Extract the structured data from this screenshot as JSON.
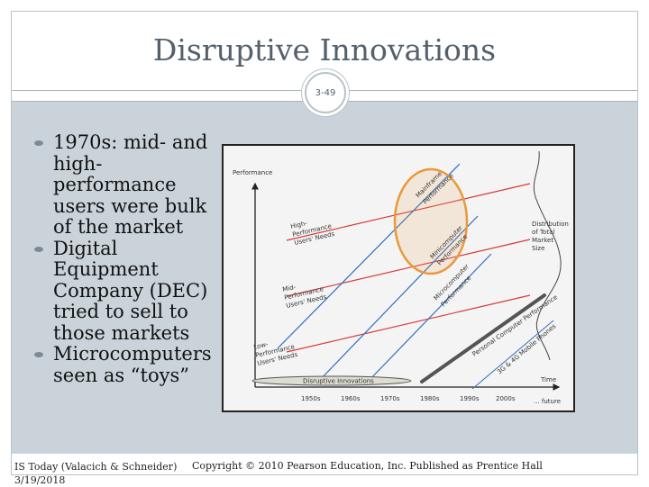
{
  "slide": {
    "title": "Disruptive Innovations",
    "page_number": "3-49"
  },
  "bullets": [
    "1970s: mid- and high-performance users were bulk of the market",
    "Digital Equipment Company (DEC) tried to sell to those markets",
    "Microcomputers seen as “toys”"
  ],
  "figure": {
    "y_axis_label": "Performance",
    "x_axis_label": "Time",
    "distribution_label_lines": [
      "Distribution",
      "of Total",
      "Market",
      "Size"
    ],
    "high_users_lines": [
      "High-",
      "Performance",
      "Users' Needs"
    ],
    "mid_users_lines": [
      "Mid-",
      "Performance",
      "Users' Needs"
    ],
    "low_users_lines": [
      "Low-",
      "Performance",
      "Users' Needs"
    ],
    "mainframe_lines": [
      "Mainframe",
      "Performance"
    ],
    "minicomputer_lines": [
      "Minicomputer",
      "Performance"
    ],
    "microcomputer_lines": [
      "Microcomputer",
      "Performance"
    ],
    "personal_computer_label": "Personal Computer Performance",
    "mobile_phones_label": "3G & 4G Mobile Phones",
    "disruptive_label": "Disruptive Innovations",
    "x_ticks": [
      "1950s",
      "1960s",
      "1970s",
      "1980s",
      "1990s",
      "2000s",
      "... future"
    ],
    "highlight_color": "#e8993c",
    "user_need_color": "#d63a3a",
    "technology_color": "#2f6fc0"
  },
  "footer": {
    "source": "IS Today (Valacich & Schneider)",
    "date": "3/19/2018",
    "copyright": "Copyright © 2010 Pearson Education, Inc. Published as Prentice Hall"
  }
}
